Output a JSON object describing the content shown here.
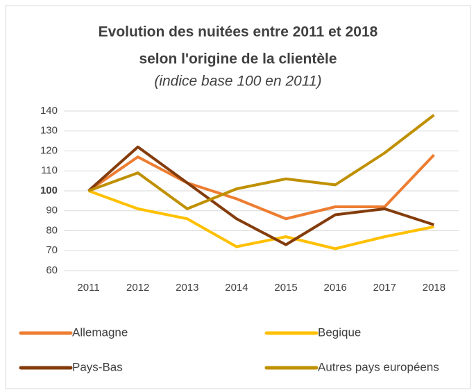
{
  "chart_data": {
    "type": "line",
    "title": [
      "Evolution des nuitées entre 2011 et 2018",
      "selon l'origine de la clientèle"
    ],
    "subtitle": "(indice base 100 en 2011)",
    "categories": [
      "2011",
      "2012",
      "2013",
      "2014",
      "2015",
      "2016",
      "2017",
      "2018"
    ],
    "series": [
      {
        "name": "Allemagne",
        "color": "#ed7d31",
        "values": [
          100,
          117,
          104,
          96,
          86,
          92,
          92,
          118
        ]
      },
      {
        "name": "Begique",
        "color": "#ffc000",
        "values": [
          100,
          91,
          86,
          72,
          77,
          71,
          77,
          82
        ]
      },
      {
        "name": "Pays-Bas",
        "color": "#843c0c",
        "values": [
          100,
          122,
          104,
          86,
          73,
          88,
          91,
          83
        ]
      },
      {
        "name": "Autres pays européens",
        "color": "#bf9000",
        "values": [
          100,
          109,
          91,
          101,
          106,
          103,
          119,
          138
        ]
      }
    ],
    "ylim": [
      60,
      140
    ],
    "yticks": [
      60,
      70,
      80,
      90,
      100,
      110,
      120,
      130,
      140
    ],
    "highlight_ytick": 100,
    "grid": true,
    "legend": "bottom"
  }
}
